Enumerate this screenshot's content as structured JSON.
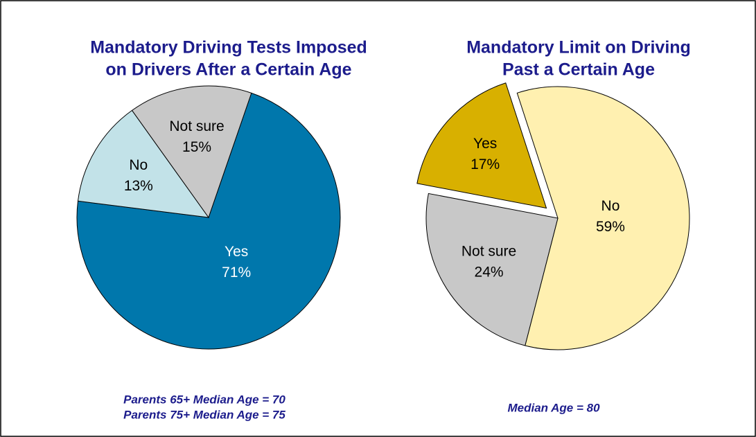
{
  "chart_data": [
    {
      "type": "pie",
      "title": [
        "Mandatory Driving Tests Imposed",
        "on Drivers After a Certain Age"
      ],
      "categories": [
        "Yes",
        "No",
        "Not sure"
      ],
      "values": [
        71,
        13,
        15
      ],
      "value_labels": [
        "71%",
        "13%",
        "15%"
      ],
      "colors": [
        "#0077ac",
        "#c2e2e8",
        "#c8c8c8"
      ],
      "explode": [
        false,
        false,
        false
      ],
      "annotations": [
        "Parents 65+ Median Age = 70",
        "Parents 75+ Median Age = 75"
      ]
    },
    {
      "type": "pie",
      "title": [
        "Mandatory Limit on Driving",
        "Past a Certain Age"
      ],
      "categories": [
        "No",
        "Not sure",
        "Yes"
      ],
      "values": [
        59,
        24,
        17
      ],
      "value_labels": [
        "59%",
        "24%",
        "17%"
      ],
      "colors": [
        "#fff0b0",
        "#c8c8c8",
        "#d8b000"
      ],
      "explode": [
        false,
        false,
        true
      ],
      "annotations": [
        "Median Age = 80"
      ]
    }
  ]
}
